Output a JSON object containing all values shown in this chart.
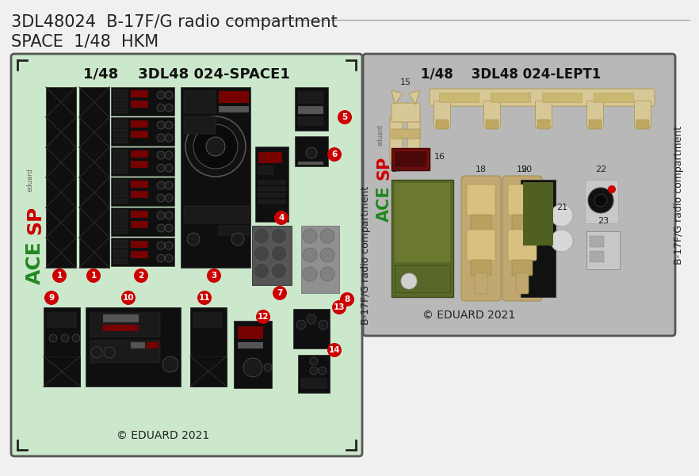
{
  "title_line1": "3DL48024  B-17F/G radio compartment",
  "title_line2": "SPACE  1/48  HKM",
  "bg_color": "#f0f0f0",
  "sheet1_bg": "#cce8cc",
  "sheet1_label": "1/48    3DL48 024-SPACE1",
  "sheet2_bg": "#b8b8b8",
  "sheet2_label": "1/48    3DL48 024-LEPT1",
  "copyright": "© EDUARD 2021",
  "side_text": "B-17F/G radio compartment",
  "dark": "#111111",
  "darkgrey": "#5a5a5a",
  "lightgrey": "#a0a0a0",
  "cream": "#d8c898",
  "green": "#5a6a28",
  "red": "#880000",
  "numred": "#cc0000",
  "white": "#ffffff"
}
